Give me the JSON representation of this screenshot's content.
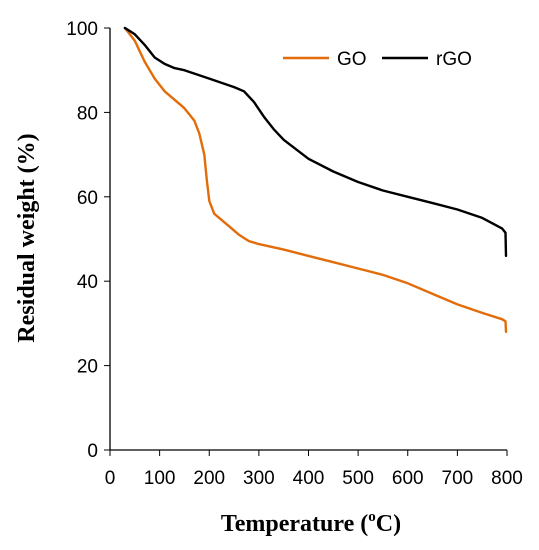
{
  "chart_data": {
    "type": "line",
    "title": "",
    "xlabel_main": "Temperature (",
    "xlabel_sup": "o",
    "xlabel_end": "C)",
    "ylabel": "Residual weight (%)",
    "xlim": [
      0,
      800
    ],
    "ylim": [
      0,
      100
    ],
    "xticks": [
      "0",
      "100",
      "200",
      "300",
      "400",
      "500",
      "600",
      "700",
      "800"
    ],
    "yticks": [
      "0",
      "20",
      "40",
      "60",
      "80",
      "100"
    ],
    "grid": false,
    "legend_position": "top-right",
    "series": [
      {
        "name": "GO",
        "color": "#E36C0A",
        "x": [
          30,
          50,
          70,
          90,
          110,
          130,
          150,
          170,
          180,
          190,
          195,
          200,
          210,
          220,
          240,
          260,
          280,
          300,
          350,
          400,
          450,
          500,
          550,
          600,
          650,
          700,
          750,
          790,
          797,
          798
        ],
        "y": [
          100,
          97,
          92,
          88,
          85,
          83,
          81,
          78,
          75,
          70,
          64,
          59,
          56,
          55,
          53,
          51,
          49.5,
          48.8,
          47.5,
          46,
          44.5,
          43,
          41.5,
          39.5,
          37,
          34.5,
          32.5,
          31,
          30.5,
          28
        ]
      },
      {
        "name": "rGO",
        "color": "#000000",
        "x": [
          30,
          50,
          70,
          90,
          110,
          130,
          150,
          200,
          250,
          270,
          290,
          310,
          330,
          350,
          400,
          450,
          500,
          550,
          600,
          650,
          700,
          750,
          790,
          797,
          798
        ],
        "y": [
          100,
          98.5,
          96,
          93,
          91.5,
          90.5,
          90,
          88,
          86,
          85,
          82.5,
          79,
          76,
          73.5,
          69,
          66,
          63.5,
          61.5,
          60,
          58.5,
          57,
          55,
          52.5,
          51.5,
          46
        ]
      }
    ]
  }
}
